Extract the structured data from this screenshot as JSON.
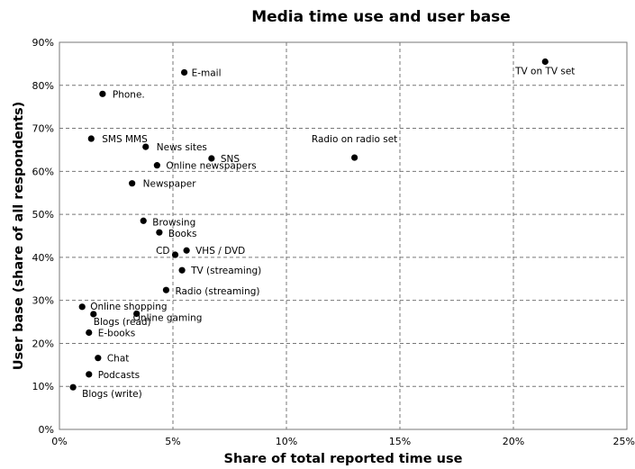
{
  "chart_data": {
    "type": "scatter",
    "title": "Media time use and user base",
    "xlabel": "Share of total reported time use",
    "ylabel": "User base (share of all respondents)",
    "xlim": [
      0,
      25
    ],
    "ylim": [
      0,
      90
    ],
    "x_ticks": [
      "0%",
      "5%",
      "10%",
      "15%",
      "20%",
      "25%"
    ],
    "y_ticks": [
      "0%",
      "10%",
      "20%",
      "30%",
      "40%",
      "50%",
      "60%",
      "70%",
      "80%",
      "90%"
    ],
    "grid": true,
    "points": [
      {
        "label": "TV on TV set",
        "x": 21.4,
        "y": 85.5
      },
      {
        "label": "E-mail",
        "x": 5.5,
        "y": 83.0
      },
      {
        "label": "Phone.",
        "x": 1.9,
        "y": 78.0
      },
      {
        "label": "SMS MMS",
        "x": 1.4,
        "y": 67.6
      },
      {
        "label": "News sites",
        "x": 3.8,
        "y": 65.7
      },
      {
        "label": "Radio on radio set",
        "x": 13.0,
        "y": 63.2
      },
      {
        "label": "SNS",
        "x": 6.7,
        "y": 63.0
      },
      {
        "label": "Online newspapers",
        "x": 4.3,
        "y": 61.4
      },
      {
        "label": "Newspaper",
        "x": 3.2,
        "y": 57.2
      },
      {
        "label": "Browsing",
        "x": 3.7,
        "y": 48.5
      },
      {
        "label": "Books",
        "x": 4.4,
        "y": 45.8
      },
      {
        "label": "VHS / DVD",
        "x": 5.6,
        "y": 41.6
      },
      {
        "label": "CD",
        "x": 5.1,
        "y": 40.6
      },
      {
        "label": "TV (streaming)",
        "x": 5.4,
        "y": 37.0
      },
      {
        "label": "Radio (streaming)",
        "x": 4.7,
        "y": 32.4
      },
      {
        "label": "Online shopping",
        "x": 1.0,
        "y": 28.5
      },
      {
        "label": "Online gaming",
        "x": 3.4,
        "y": 26.9
      },
      {
        "label": "Blogs (read)",
        "x": 1.5,
        "y": 26.8
      },
      {
        "label": "E-books",
        "x": 1.3,
        "y": 22.5
      },
      {
        "label": "Chat",
        "x": 1.7,
        "y": 16.6
      },
      {
        "label": "Podcasts",
        "x": 1.3,
        "y": 12.8
      },
      {
        "label": "Blogs (write)",
        "x": 0.6,
        "y": 9.8
      }
    ]
  }
}
